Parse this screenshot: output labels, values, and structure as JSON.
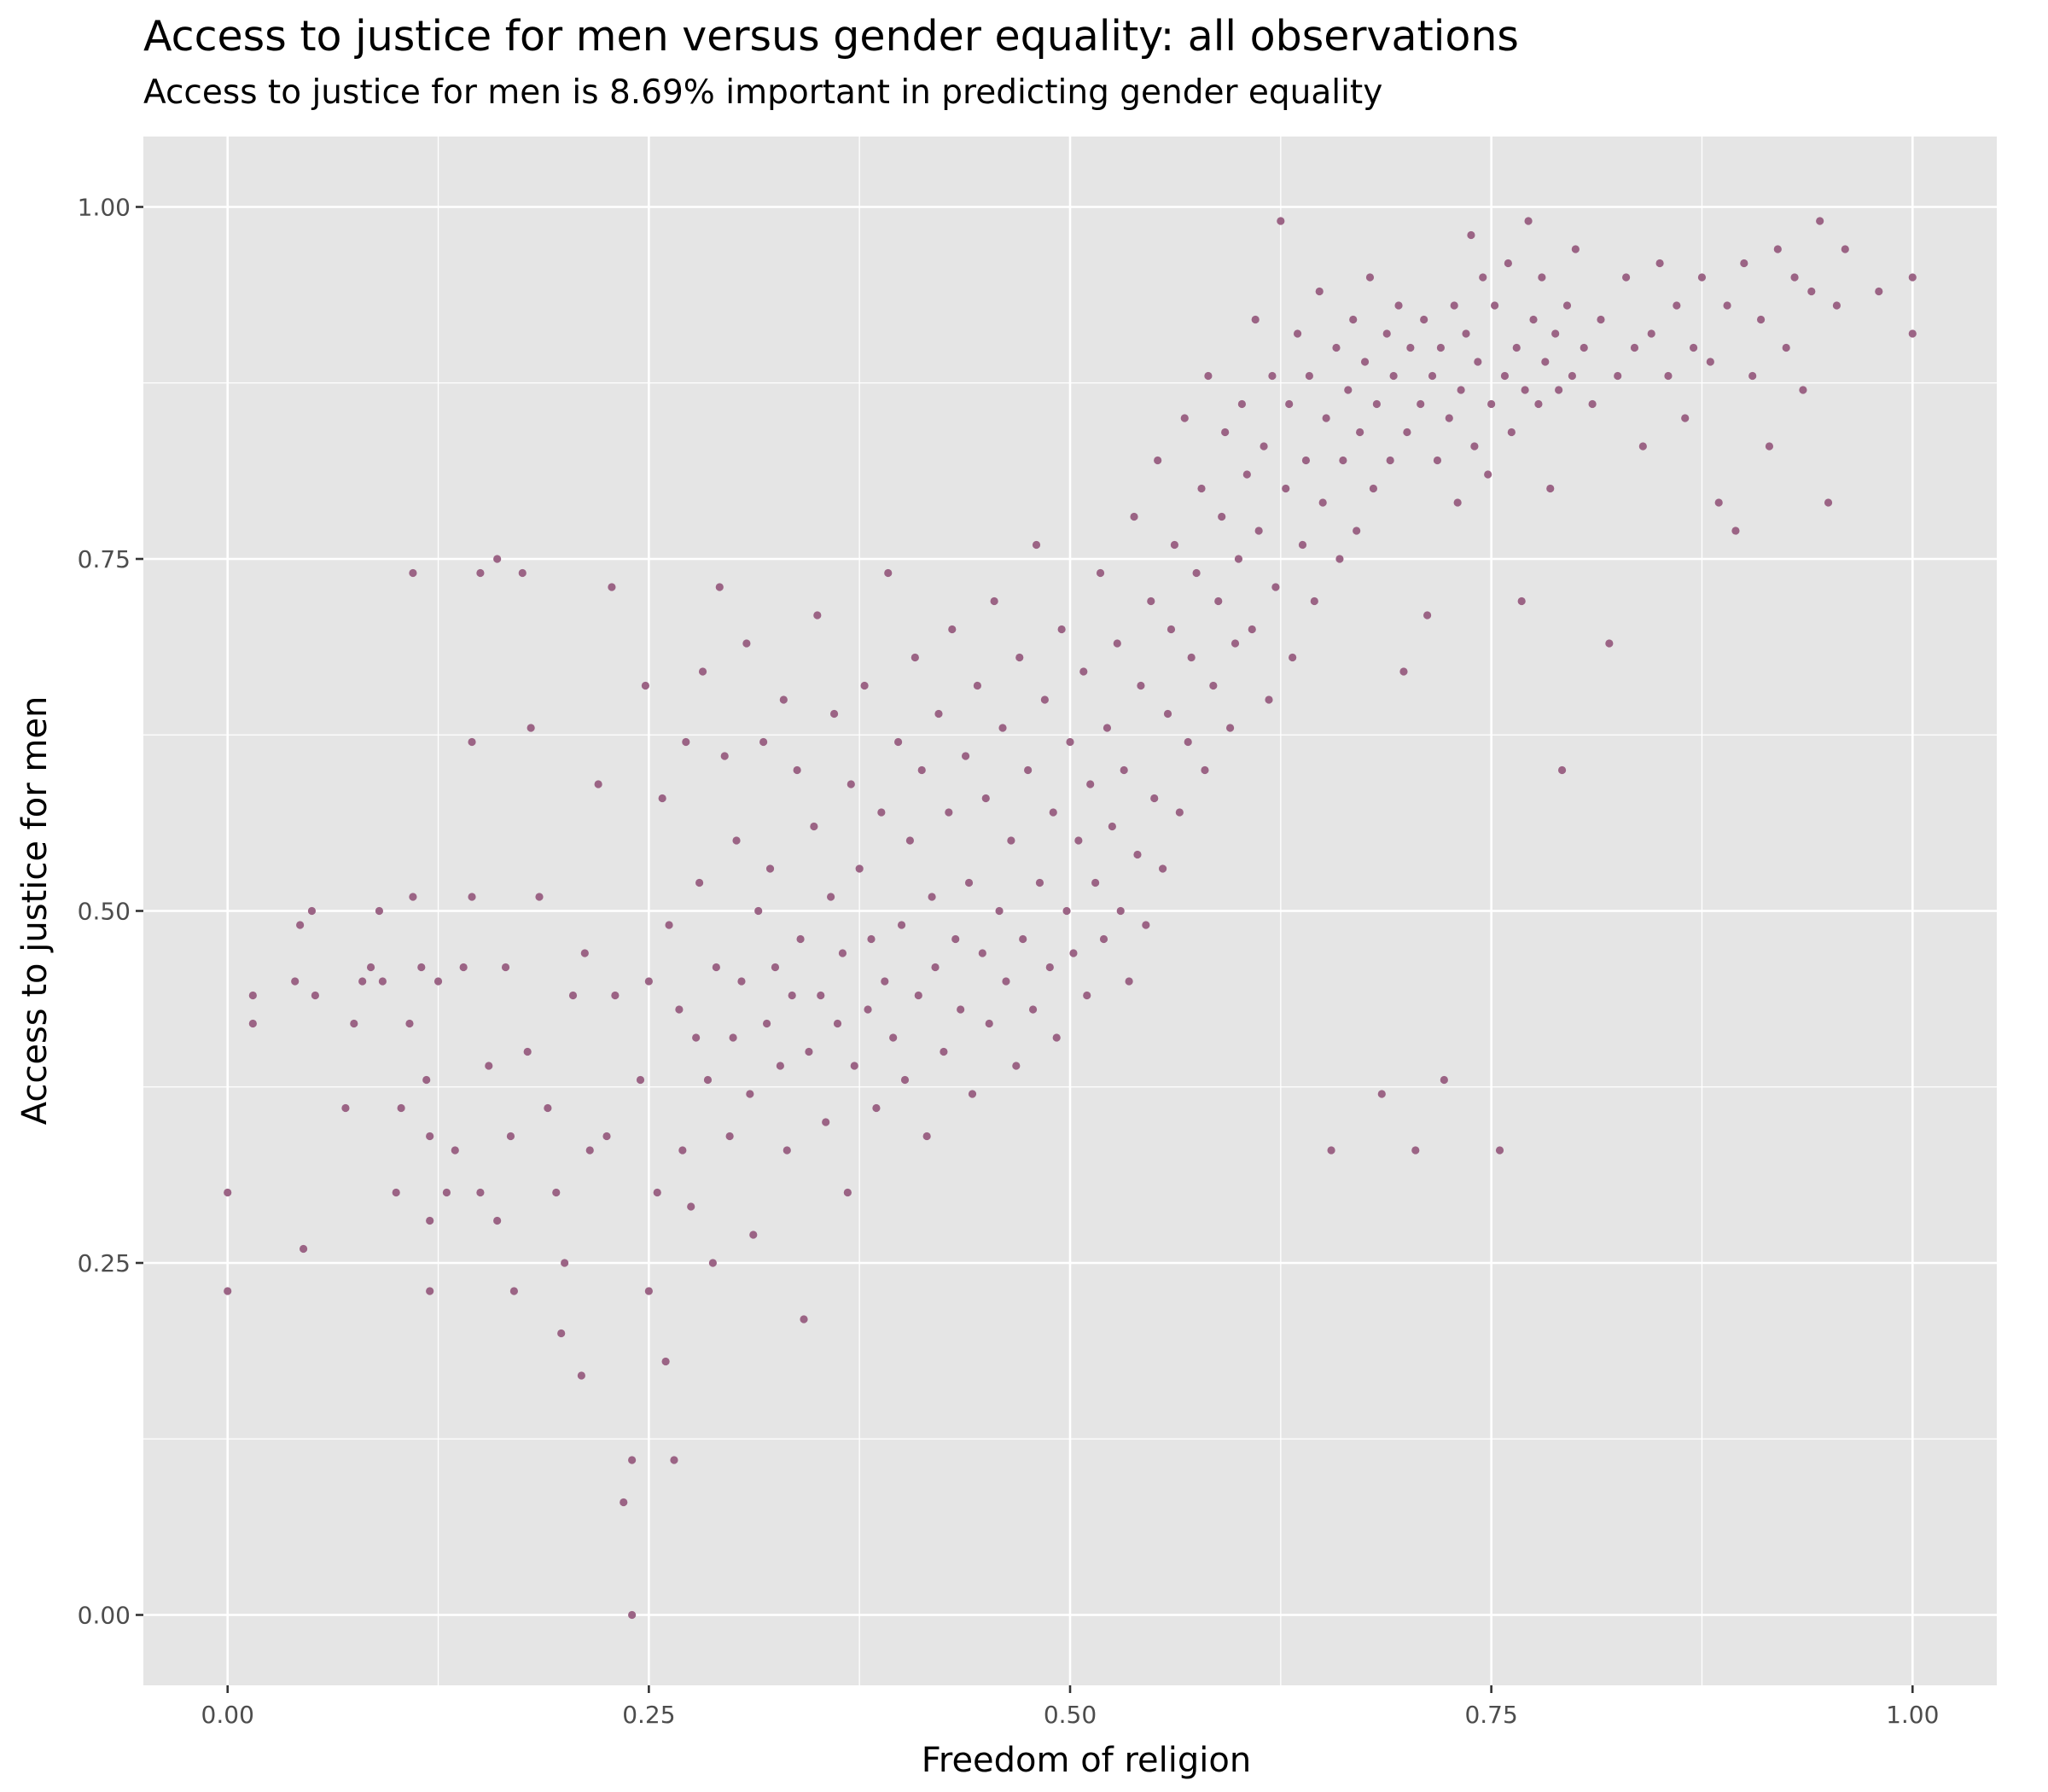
{
  "chart_data": {
    "type": "scatter",
    "title": "Access to justice for men versus gender equality: all observations",
    "subtitle": "Access to justice for men is 8.69% important in predicting gender equality",
    "xlabel": "Freedom of religion",
    "ylabel": "Access to justice for men",
    "xlim": [
      -0.05,
      1.05
    ],
    "ylim": [
      -0.05,
      1.05
    ],
    "x_ticks": [
      0,
      0.25,
      0.5,
      0.75,
      1
    ],
    "x_tick_labels": [
      "0.00",
      "0.25",
      "0.50",
      "0.75",
      "1.00"
    ],
    "y_ticks": [
      0,
      0.25,
      0.5,
      0.75,
      1
    ],
    "y_tick_labels": [
      "0.00",
      "0.25",
      "0.50",
      "0.75",
      "1.00"
    ],
    "grid": true,
    "point_color": "#9b6485",
    "panel_color": "#e5e5e5",
    "grid_color": "#ffffff",
    "points": [
      [
        0.0,
        0.3
      ],
      [
        0.0,
        0.23
      ],
      [
        0.015,
        0.44
      ],
      [
        0.015,
        0.42
      ],
      [
        0.04,
        0.45
      ],
      [
        0.043,
        0.49
      ],
      [
        0.045,
        0.26
      ],
      [
        0.05,
        0.5
      ],
      [
        0.052,
        0.44
      ],
      [
        0.07,
        0.36
      ],
      [
        0.075,
        0.42
      ],
      [
        0.08,
        0.45
      ],
      [
        0.085,
        0.46
      ],
      [
        0.09,
        0.5
      ],
      [
        0.092,
        0.45
      ],
      [
        0.1,
        0.3
      ],
      [
        0.103,
        0.36
      ],
      [
        0.108,
        0.42
      ],
      [
        0.11,
        0.51
      ],
      [
        0.11,
        0.74
      ],
      [
        0.115,
        0.46
      ],
      [
        0.118,
        0.38
      ],
      [
        0.12,
        0.34
      ],
      [
        0.12,
        0.28
      ],
      [
        0.12,
        0.23
      ],
      [
        0.125,
        0.45
      ],
      [
        0.13,
        0.3
      ],
      [
        0.135,
        0.33
      ],
      [
        0.14,
        0.46
      ],
      [
        0.145,
        0.62
      ],
      [
        0.145,
        0.51
      ],
      [
        0.15,
        0.3
      ],
      [
        0.15,
        0.74
      ],
      [
        0.155,
        0.39
      ],
      [
        0.16,
        0.75
      ],
      [
        0.16,
        0.28
      ],
      [
        0.165,
        0.46
      ],
      [
        0.168,
        0.34
      ],
      [
        0.17,
        0.23
      ],
      [
        0.175,
        0.74
      ],
      [
        0.178,
        0.4
      ],
      [
        0.18,
        0.63
      ],
      [
        0.185,
        0.51
      ],
      [
        0.19,
        0.36
      ],
      [
        0.195,
        0.3
      ],
      [
        0.198,
        0.2
      ],
      [
        0.2,
        0.25
      ],
      [
        0.205,
        0.44
      ],
      [
        0.21,
        0.17
      ],
      [
        0.212,
        0.47
      ],
      [
        0.215,
        0.33
      ],
      [
        0.22,
        0.59
      ],
      [
        0.225,
        0.34
      ],
      [
        0.228,
        0.73
      ],
      [
        0.23,
        0.44
      ],
      [
        0.235,
        0.08
      ],
      [
        0.24,
        0.0
      ],
      [
        0.24,
        0.11
      ],
      [
        0.245,
        0.38
      ],
      [
        0.248,
        0.66
      ],
      [
        0.25,
        0.23
      ],
      [
        0.25,
        0.45
      ],
      [
        0.255,
        0.3
      ],
      [
        0.258,
        0.58
      ],
      [
        0.26,
        0.18
      ],
      [
        0.262,
        0.49
      ],
      [
        0.265,
        0.11
      ],
      [
        0.268,
        0.43
      ],
      [
        0.27,
        0.33
      ],
      [
        0.272,
        0.62
      ],
      [
        0.275,
        0.29
      ],
      [
        0.278,
        0.41
      ],
      [
        0.28,
        0.52
      ],
      [
        0.282,
        0.67
      ],
      [
        0.285,
        0.38
      ],
      [
        0.288,
        0.25
      ],
      [
        0.29,
        0.46
      ],
      [
        0.292,
        0.73
      ],
      [
        0.295,
        0.61
      ],
      [
        0.298,
        0.34
      ],
      [
        0.3,
        0.41
      ],
      [
        0.302,
        0.55
      ],
      [
        0.305,
        0.45
      ],
      [
        0.308,
        0.69
      ],
      [
        0.31,
        0.37
      ],
      [
        0.312,
        0.27
      ],
      [
        0.315,
        0.5
      ],
      [
        0.318,
        0.62
      ],
      [
        0.32,
        0.42
      ],
      [
        0.322,
        0.53
      ],
      [
        0.325,
        0.46
      ],
      [
        0.328,
        0.39
      ],
      [
        0.33,
        0.65
      ],
      [
        0.332,
        0.33
      ],
      [
        0.335,
        0.44
      ],
      [
        0.338,
        0.6
      ],
      [
        0.34,
        0.48
      ],
      [
        0.342,
        0.21
      ],
      [
        0.345,
        0.4
      ],
      [
        0.348,
        0.56
      ],
      [
        0.35,
        0.71
      ],
      [
        0.352,
        0.44
      ],
      [
        0.355,
        0.35
      ],
      [
        0.358,
        0.51
      ],
      [
        0.36,
        0.64
      ],
      [
        0.362,
        0.42
      ],
      [
        0.365,
        0.47
      ],
      [
        0.368,
        0.3
      ],
      [
        0.37,
        0.59
      ],
      [
        0.372,
        0.39
      ],
      [
        0.375,
        0.53
      ],
      [
        0.378,
        0.66
      ],
      [
        0.38,
        0.43
      ],
      [
        0.382,
        0.48
      ],
      [
        0.385,
        0.36
      ],
      [
        0.388,
        0.57
      ],
      [
        0.39,
        0.45
      ],
      [
        0.392,
        0.74
      ],
      [
        0.395,
        0.41
      ],
      [
        0.398,
        0.62
      ],
      [
        0.4,
        0.49
      ],
      [
        0.402,
        0.38
      ],
      [
        0.405,
        0.55
      ],
      [
        0.408,
        0.68
      ],
      [
        0.41,
        0.44
      ],
      [
        0.412,
        0.6
      ],
      [
        0.415,
        0.34
      ],
      [
        0.418,
        0.51
      ],
      [
        0.42,
        0.46
      ],
      [
        0.422,
        0.64
      ],
      [
        0.425,
        0.4
      ],
      [
        0.428,
        0.57
      ],
      [
        0.43,
        0.7
      ],
      [
        0.432,
        0.48
      ],
      [
        0.435,
        0.43
      ],
      [
        0.438,
        0.61
      ],
      [
        0.44,
        0.52
      ],
      [
        0.442,
        0.37
      ],
      [
        0.445,
        0.66
      ],
      [
        0.448,
        0.47
      ],
      [
        0.45,
        0.58
      ],
      [
        0.452,
        0.42
      ],
      [
        0.455,
        0.72
      ],
      [
        0.458,
        0.5
      ],
      [
        0.46,
        0.63
      ],
      [
        0.462,
        0.45
      ],
      [
        0.465,
        0.55
      ],
      [
        0.468,
        0.39
      ],
      [
        0.47,
        0.68
      ],
      [
        0.472,
        0.48
      ],
      [
        0.475,
        0.6
      ],
      [
        0.478,
        0.43
      ],
      [
        0.48,
        0.76
      ],
      [
        0.482,
        0.52
      ],
      [
        0.485,
        0.65
      ],
      [
        0.488,
        0.46
      ],
      [
        0.49,
        0.57
      ],
      [
        0.492,
        0.41
      ],
      [
        0.495,
        0.7
      ],
      [
        0.498,
        0.5
      ],
      [
        0.5,
        0.62
      ],
      [
        0.502,
        0.47
      ],
      [
        0.505,
        0.55
      ],
      [
        0.508,
        0.67
      ],
      [
        0.51,
        0.44
      ],
      [
        0.512,
        0.59
      ],
      [
        0.515,
        0.52
      ],
      [
        0.518,
        0.74
      ],
      [
        0.52,
        0.48
      ],
      [
        0.522,
        0.63
      ],
      [
        0.525,
        0.56
      ],
      [
        0.528,
        0.69
      ],
      [
        0.53,
        0.5
      ],
      [
        0.532,
        0.6
      ],
      [
        0.535,
        0.45
      ],
      [
        0.538,
        0.78
      ],
      [
        0.54,
        0.54
      ],
      [
        0.542,
        0.66
      ],
      [
        0.545,
        0.49
      ],
      [
        0.548,
        0.72
      ],
      [
        0.55,
        0.58
      ],
      [
        0.552,
        0.82
      ],
      [
        0.555,
        0.53
      ],
      [
        0.558,
        0.64
      ],
      [
        0.56,
        0.7
      ],
      [
        0.562,
        0.76
      ],
      [
        0.565,
        0.57
      ],
      [
        0.568,
        0.85
      ],
      [
        0.57,
        0.62
      ],
      [
        0.572,
        0.68
      ],
      [
        0.575,
        0.74
      ],
      [
        0.578,
        0.8
      ],
      [
        0.58,
        0.6
      ],
      [
        0.582,
        0.88
      ],
      [
        0.585,
        0.66
      ],
      [
        0.588,
        0.72
      ],
      [
        0.59,
        0.78
      ],
      [
        0.592,
        0.84
      ],
      [
        0.595,
        0.63
      ],
      [
        0.598,
        0.69
      ],
      [
        0.6,
        0.75
      ],
      [
        0.602,
        0.86
      ],
      [
        0.605,
        0.81
      ],
      [
        0.608,
        0.7
      ],
      [
        0.61,
        0.92
      ],
      [
        0.612,
        0.77
      ],
      [
        0.615,
        0.83
      ],
      [
        0.618,
        0.65
      ],
      [
        0.62,
        0.88
      ],
      [
        0.622,
        0.73
      ],
      [
        0.625,
        0.99
      ],
      [
        0.628,
        0.8
      ],
      [
        0.63,
        0.86
      ],
      [
        0.632,
        0.68
      ],
      [
        0.635,
        0.91
      ],
      [
        0.638,
        0.76
      ],
      [
        0.64,
        0.82
      ],
      [
        0.642,
        0.88
      ],
      [
        0.645,
        0.72
      ],
      [
        0.648,
        0.94
      ],
      [
        0.65,
        0.79
      ],
      [
        0.652,
        0.85
      ],
      [
        0.655,
        0.33
      ],
      [
        0.658,
        0.9
      ],
      [
        0.66,
        0.75
      ],
      [
        0.662,
        0.82
      ],
      [
        0.665,
        0.87
      ],
      [
        0.668,
        0.92
      ],
      [
        0.67,
        0.77
      ],
      [
        0.672,
        0.84
      ],
      [
        0.675,
        0.89
      ],
      [
        0.678,
        0.95
      ],
      [
        0.68,
        0.8
      ],
      [
        0.682,
        0.86
      ],
      [
        0.685,
        0.37
      ],
      [
        0.688,
        0.91
      ],
      [
        0.69,
        0.82
      ],
      [
        0.692,
        0.88
      ],
      [
        0.695,
        0.93
      ],
      [
        0.698,
        0.67
      ],
      [
        0.7,
        0.84
      ],
      [
        0.702,
        0.9
      ],
      [
        0.705,
        0.33
      ],
      [
        0.708,
        0.86
      ],
      [
        0.71,
        0.92
      ],
      [
        0.712,
        0.71
      ],
      [
        0.715,
        0.88
      ],
      [
        0.718,
        0.82
      ],
      [
        0.72,
        0.9
      ],
      [
        0.722,
        0.38
      ],
      [
        0.725,
        0.85
      ],
      [
        0.728,
        0.93
      ],
      [
        0.73,
        0.79
      ],
      [
        0.732,
        0.87
      ],
      [
        0.735,
        0.91
      ],
      [
        0.738,
        0.98
      ],
      [
        0.74,
        0.83
      ],
      [
        0.742,
        0.89
      ],
      [
        0.745,
        0.95
      ],
      [
        0.748,
        0.81
      ],
      [
        0.75,
        0.86
      ],
      [
        0.752,
        0.93
      ],
      [
        0.755,
        0.33
      ],
      [
        0.758,
        0.88
      ],
      [
        0.76,
        0.96
      ],
      [
        0.762,
        0.84
      ],
      [
        0.765,
        0.9
      ],
      [
        0.768,
        0.72
      ],
      [
        0.77,
        0.87
      ],
      [
        0.772,
        0.99
      ],
      [
        0.775,
        0.92
      ],
      [
        0.778,
        0.86
      ],
      [
        0.78,
        0.95
      ],
      [
        0.782,
        0.89
      ],
      [
        0.785,
        0.8
      ],
      [
        0.788,
        0.91
      ],
      [
        0.79,
        0.87
      ],
      [
        0.792,
        0.6
      ],
      [
        0.795,
        0.93
      ],
      [
        0.798,
        0.88
      ],
      [
        0.8,
        0.97
      ],
      [
        0.805,
        0.9
      ],
      [
        0.81,
        0.86
      ],
      [
        0.815,
        0.92
      ],
      [
        0.82,
        0.69
      ],
      [
        0.825,
        0.88
      ],
      [
        0.83,
        0.95
      ],
      [
        0.835,
        0.9
      ],
      [
        0.84,
        0.83
      ],
      [
        0.845,
        0.91
      ],
      [
        0.85,
        0.96
      ],
      [
        0.855,
        0.88
      ],
      [
        0.86,
        0.93
      ],
      [
        0.865,
        0.85
      ],
      [
        0.87,
        0.9
      ],
      [
        0.875,
        0.95
      ],
      [
        0.88,
        0.89
      ],
      [
        0.885,
        0.79
      ],
      [
        0.89,
        0.93
      ],
      [
        0.895,
        0.77
      ],
      [
        0.9,
        0.96
      ],
      [
        0.905,
        0.88
      ],
      [
        0.91,
        0.92
      ],
      [
        0.915,
        0.83
      ],
      [
        0.92,
        0.97
      ],
      [
        0.925,
        0.9
      ],
      [
        0.93,
        0.95
      ],
      [
        0.935,
        0.87
      ],
      [
        0.94,
        0.94
      ],
      [
        0.945,
        0.99
      ],
      [
        0.95,
        0.79
      ],
      [
        0.955,
        0.93
      ],
      [
        0.96,
        0.97
      ],
      [
        0.98,
        0.94
      ],
      [
        1.0,
        0.95
      ],
      [
        1.0,
        0.91
      ]
    ]
  }
}
